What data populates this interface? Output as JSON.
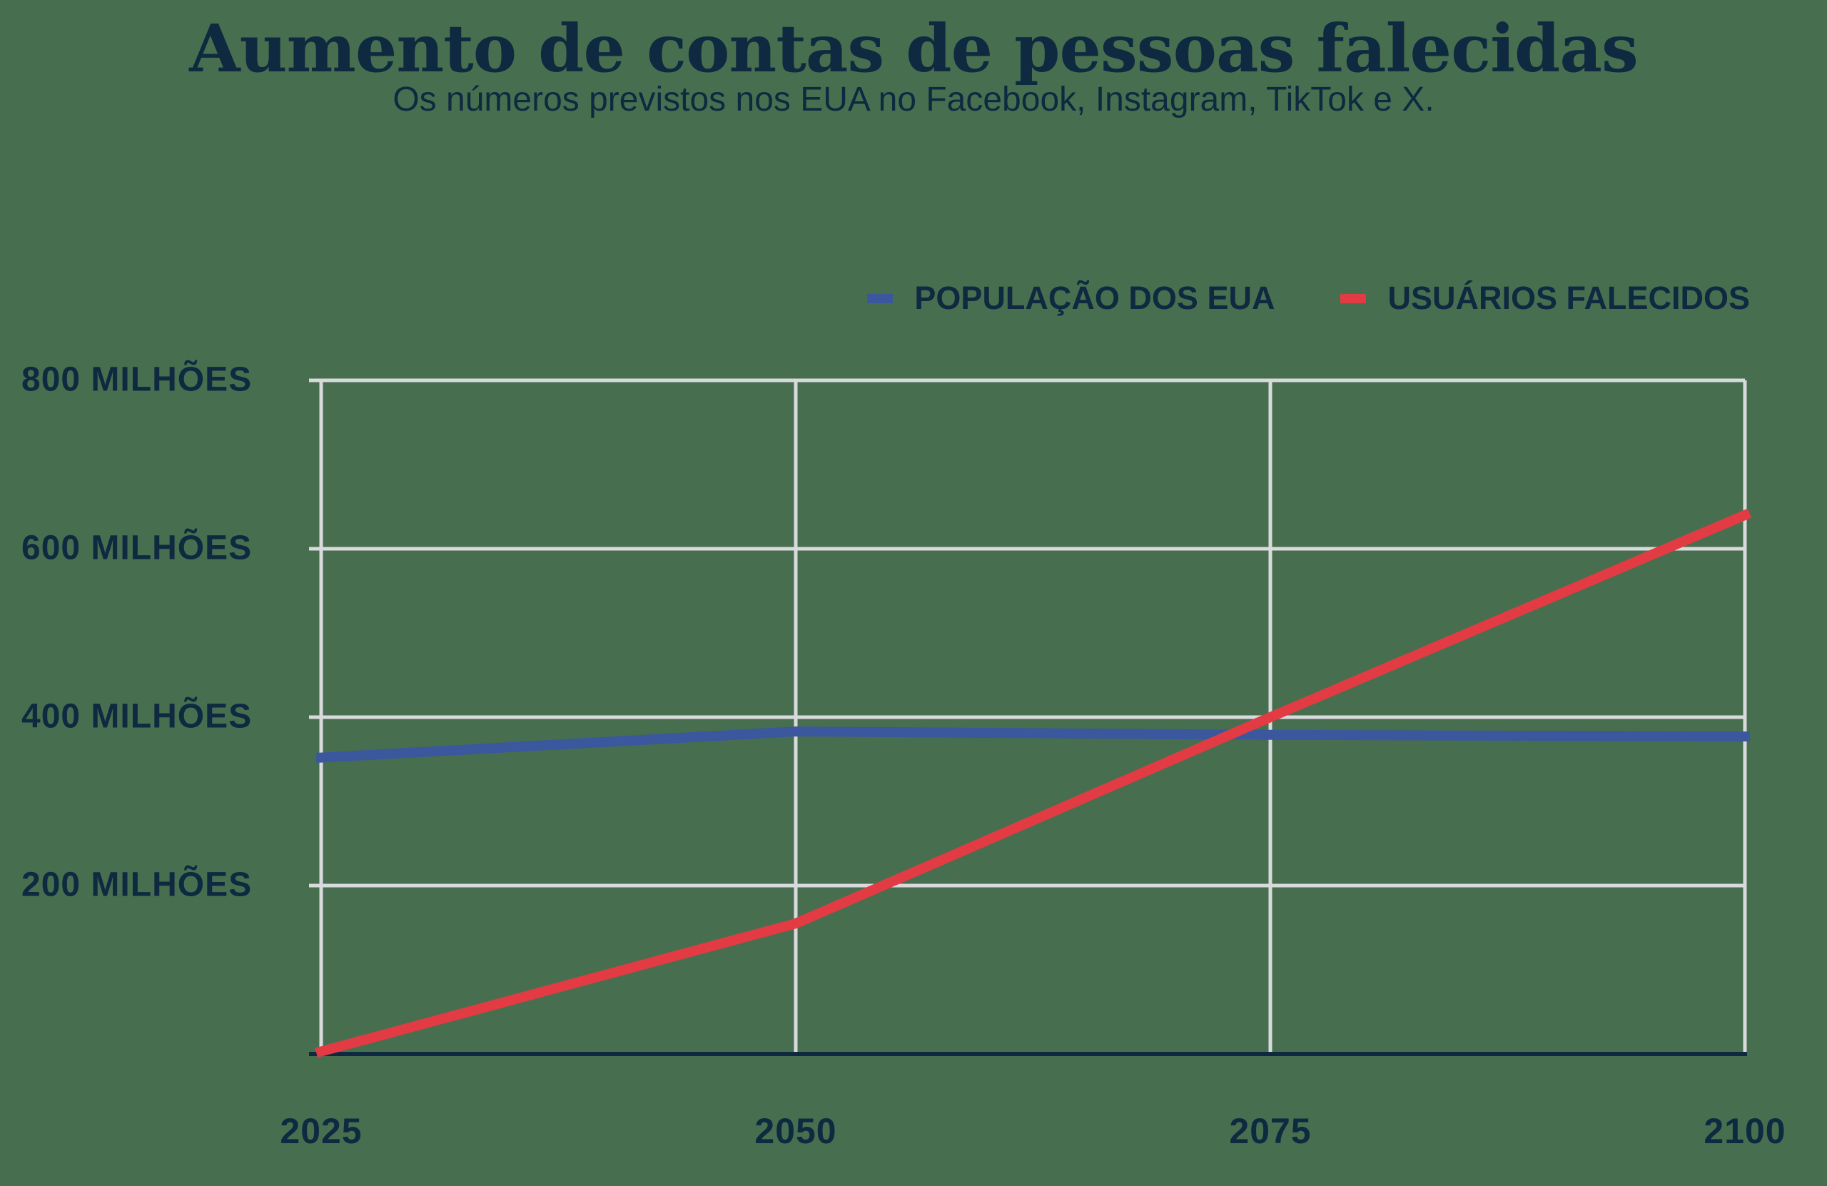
{
  "title": "Aumento de contas de pessoas falecidas",
  "subtitle": "Os números previstos nos EUA no Facebook, Instagram, TikTok e X.",
  "chart_data": {
    "type": "line",
    "title": "Aumento de contas de pessoas falecidas",
    "subtitle": "Os números previstos nos EUA no Facebook, Instagram, TikTok e X.",
    "x": [
      2025,
      2050,
      2075,
      2100
    ],
    "x_tick_labels": [
      "2025",
      "2050",
      "2075",
      "2100"
    ],
    "y_ticks": [
      200,
      400,
      600,
      800
    ],
    "y_tick_labels": [
      "200 MILHÕES",
      "400 MILHÕES",
      "600 MILHÕES",
      "800 MILHÕES"
    ],
    "ylim": [
      0,
      800
    ],
    "unit": "milhões",
    "grid": true,
    "legend_position": "top-right",
    "series": [
      {
        "name": "POPULAÇÃO DOS EUA",
        "color": "#3B579D",
        "values": [
          352,
          383,
          379,
          377
        ]
      },
      {
        "name": "USUÁRIOS FALECIDOS",
        "color": "#E23B43",
        "values": [
          3,
          155,
          400,
          640
        ]
      }
    ]
  },
  "colors": {
    "background": "#476F4F",
    "text": "#0F2940",
    "gridline": "#D8DADC",
    "axis": "#0F2940"
  }
}
